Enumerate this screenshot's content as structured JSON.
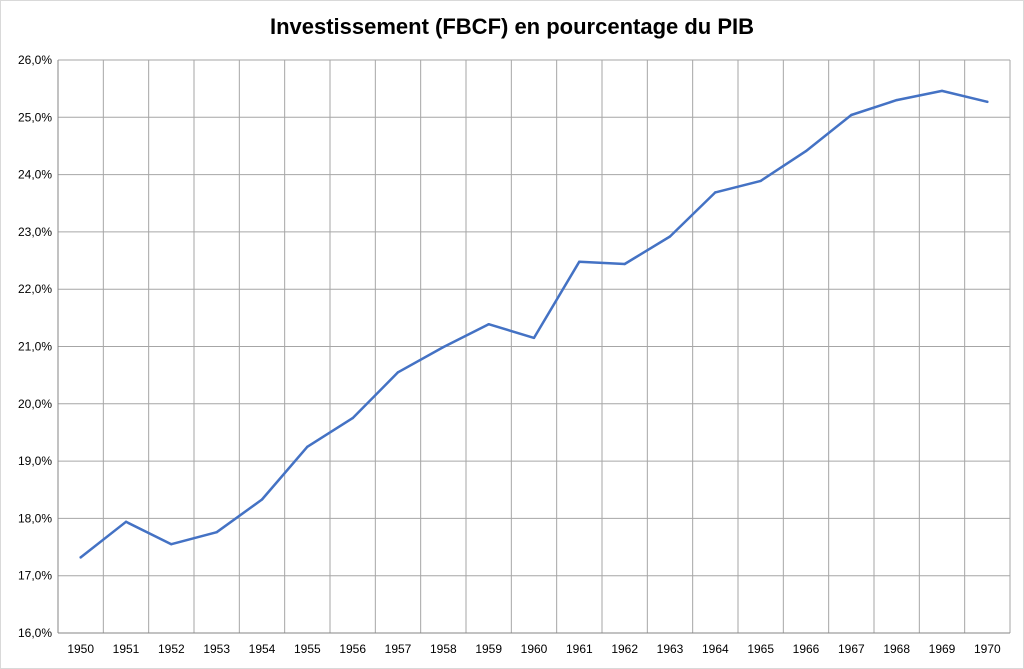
{
  "chart_data": {
    "type": "line",
    "title": "Investissement (FBCF) en pourcentage du PIB",
    "xlabel": "",
    "ylabel": "",
    "x": [
      "1950",
      "1951",
      "1952",
      "1953",
      "1954",
      "1955",
      "1956",
      "1957",
      "1958",
      "1959",
      "1960",
      "1961",
      "1962",
      "1963",
      "1964",
      "1965",
      "1966",
      "1967",
      "1968",
      "1969",
      "1970"
    ],
    "series": [
      {
        "name": "",
        "values": [
          17.32,
          17.94,
          17.55,
          17.76,
          18.33,
          19.25,
          19.75,
          20.55,
          20.99,
          21.39,
          21.15,
          22.48,
          22.44,
          22.92,
          23.69,
          23.89,
          24.41,
          25.04,
          25.3,
          25.46,
          25.27
        ]
      }
    ],
    "ylim": [
      16,
      26
    ],
    "ytick_step": 1,
    "ytick_labels": [
      "16,0%",
      "17,0%",
      "18,0%",
      "19,0%",
      "20,0%",
      "21,0%",
      "22,0%",
      "23,0%",
      "24,0%",
      "25,0%",
      "26,0%"
    ],
    "grid": true,
    "legend": "none",
    "colors": {
      "line": "#4472c4",
      "grid": "#a6a6a6",
      "axis": "#868686",
      "border": "#d9d9d9"
    }
  }
}
